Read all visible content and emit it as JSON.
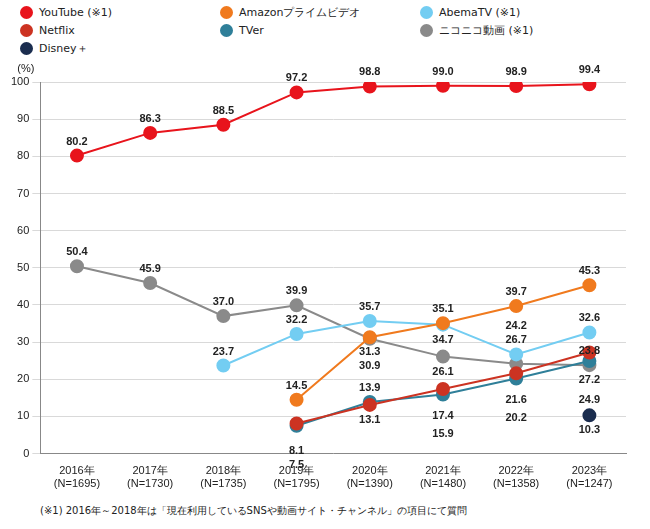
{
  "chart_data": {
    "type": "line",
    "ylabel": "(%)",
    "categories": [
      "2016年\n(N=1695)",
      "2017年\n(N=1730)",
      "2018年\n(N=1735)",
      "2019年\n(N=1795)",
      "2020年\n(N=1390)",
      "2021年\n(N=1480)",
      "2022年\n(N=1358)",
      "2023年\n(N=1247)"
    ],
    "series": [
      {
        "name": "YouTube (※1)",
        "color": "#e8141c",
        "values": [
          80.2,
          86.3,
          88.5,
          97.2,
          98.8,
          99.0,
          98.9,
          99.4
        ],
        "value_labels": [
          "80.2",
          "86.3",
          "88.5",
          "97.2",
          "98.8",
          "99.0",
          "98.9",
          "99.4"
        ]
      },
      {
        "name": "Amazonプライムビデオ",
        "color": "#f07a1e",
        "values": [
          null,
          null,
          null,
          14.5,
          31.3,
          35.1,
          39.7,
          45.3
        ],
        "value_labels": [
          null,
          null,
          null,
          "14.5",
          "31.3",
          "35.1",
          "39.7",
          "45.3"
        ]
      },
      {
        "name": "AbemaTV (※1)",
        "color": "#73cdf2",
        "values": [
          null,
          null,
          23.7,
          32.2,
          35.7,
          34.7,
          26.7,
          32.6
        ],
        "value_labels": [
          null,
          null,
          "23.7",
          "32.2",
          "35.7",
          "34.7",
          "26.7",
          "32.6"
        ]
      },
      {
        "name": "Netflix",
        "color": "#cc3322",
        "values": [
          null,
          null,
          null,
          8.1,
          13.1,
          17.4,
          21.6,
          27.2
        ],
        "value_labels": [
          null,
          null,
          null,
          "8.1",
          "13.1",
          "17.4",
          "21.6",
          "27.2"
        ]
      },
      {
        "name": "TVer",
        "color": "#2f7f99",
        "values": [
          null,
          null,
          null,
          7.5,
          13.9,
          15.9,
          20.2,
          24.9
        ],
        "value_labels": [
          null,
          null,
          null,
          "7.5",
          "13.9",
          "15.9",
          "20.2",
          "24.9"
        ]
      },
      {
        "name": "ニコニコ動画 (※1)",
        "color": "#8a8a8a",
        "values": [
          50.4,
          45.9,
          37.0,
          39.9,
          30.9,
          26.1,
          24.2,
          23.8
        ],
        "value_labels": [
          "50.4",
          "45.9",
          "37.0",
          "39.9",
          "30.9",
          "26.1",
          "24.2",
          "23.8"
        ]
      },
      {
        "name": "Disney＋",
        "color": "#1b2d4f",
        "values": [
          null,
          null,
          null,
          null,
          null,
          null,
          null,
          10.3
        ],
        "value_labels": [
          null,
          null,
          null,
          null,
          null,
          null,
          null,
          "10.3"
        ]
      }
    ],
    "ylim": [
      0,
      100
    ],
    "yticks": [
      0,
      10,
      20,
      30,
      40,
      50,
      60,
      70,
      80,
      90,
      100
    ],
    "grid": true,
    "legend": "top",
    "marker": "circle",
    "data_labels": true,
    "footnote": "(※1) 2016年～2018年は「現在利用しているSNSや動画サイト・チャンネル」の項目にて質問"
  }
}
